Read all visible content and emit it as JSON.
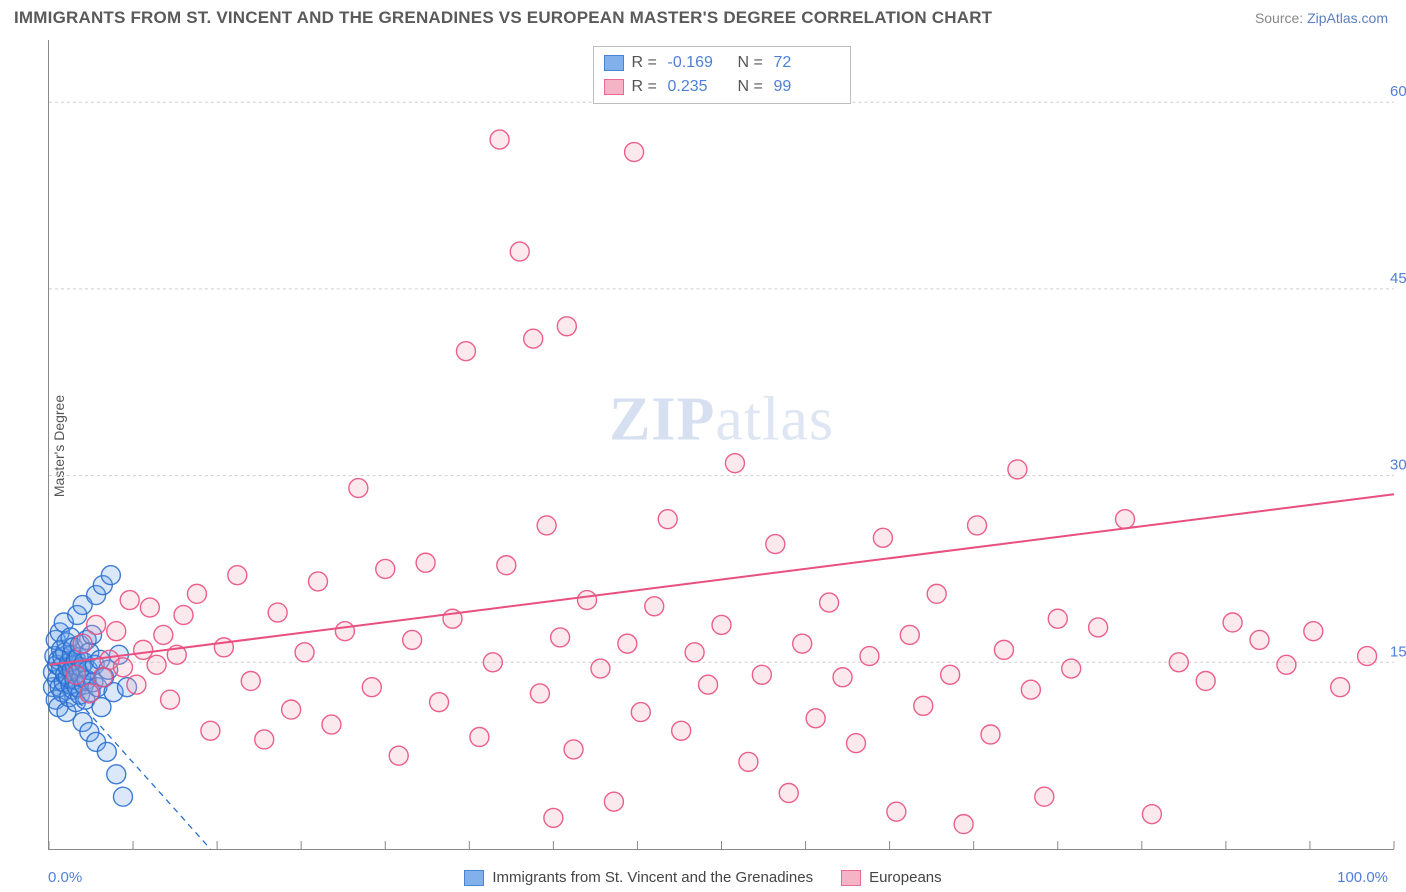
{
  "title": "IMMIGRANTS FROM ST. VINCENT AND THE GRENADINES VS EUROPEAN MASTER'S DEGREE CORRELATION CHART",
  "source_prefix": "Source: ",
  "source_link_text": "ZipAtlas.com",
  "watermark": "ZIPatlas",
  "ylabel": "Master's Degree",
  "chart": {
    "type": "scatter",
    "xlim": [
      0,
      100
    ],
    "ylim": [
      0,
      65
    ],
    "x_ticks_minor_step": 6.25,
    "y_gridlines": [
      15,
      30,
      45,
      60
    ],
    "y_tick_labels": [
      "15.0%",
      "30.0%",
      "45.0%",
      "60.0%"
    ],
    "x_start_label": "0.0%",
    "x_end_label": "100.0%",
    "background_color": "#ffffff",
    "grid_color": "#cfcfcf",
    "marker_radius": 9.5,
    "series": [
      {
        "id": "svg_series",
        "label": "Immigrants from St. Vincent and the Grenadines",
        "color_fill": "#6da3e8",
        "color_stroke": "#2b6fd0",
        "R": "-0.169",
        "N": "72",
        "trend": {
          "x1": 0,
          "y1": 14.5,
          "x2": 12,
          "y2": 0,
          "dashed": true,
          "stroke": "#2b6fd0"
        },
        "points": [
          [
            0.3,
            13.0
          ],
          [
            0.3,
            14.2
          ],
          [
            0.4,
            15.5
          ],
          [
            0.5,
            12.0
          ],
          [
            0.5,
            16.8
          ],
          [
            0.6,
            13.6
          ],
          [
            0.6,
            14.8
          ],
          [
            0.7,
            15.2
          ],
          [
            0.7,
            11.4
          ],
          [
            0.8,
            17.4
          ],
          [
            0.8,
            13.0
          ],
          [
            0.9,
            14.6
          ],
          [
            0.9,
            16.0
          ],
          [
            1.0,
            12.6
          ],
          [
            1.0,
            15.4
          ],
          [
            1.1,
            18.2
          ],
          [
            1.1,
            13.4
          ],
          [
            1.2,
            14.0
          ],
          [
            1.2,
            15.8
          ],
          [
            1.3,
            11.0
          ],
          [
            1.3,
            16.6
          ],
          [
            1.4,
            13.8
          ],
          [
            1.4,
            14.6
          ],
          [
            1.5,
            15.0
          ],
          [
            1.5,
            12.2
          ],
          [
            1.6,
            17.0
          ],
          [
            1.6,
            13.2
          ],
          [
            1.7,
            14.4
          ],
          [
            1.7,
            15.6
          ],
          [
            1.8,
            12.8
          ],
          [
            1.8,
            16.2
          ],
          [
            1.9,
            13.6
          ],
          [
            1.9,
            14.8
          ],
          [
            2.0,
            15.2
          ],
          [
            2.0,
            11.8
          ],
          [
            2.1,
            18.8
          ],
          [
            2.1,
            13.0
          ],
          [
            2.2,
            14.2
          ],
          [
            2.2,
            15.4
          ],
          [
            2.3,
            12.4
          ],
          [
            2.3,
            16.4
          ],
          [
            2.4,
            13.8
          ],
          [
            2.4,
            14.6
          ],
          [
            2.5,
            10.2
          ],
          [
            2.5,
            19.6
          ],
          [
            2.6,
            13.2
          ],
          [
            2.6,
            15.0
          ],
          [
            2.7,
            12.0
          ],
          [
            2.8,
            16.8
          ],
          [
            2.8,
            13.6
          ],
          [
            2.9,
            14.4
          ],
          [
            3.0,
            9.4
          ],
          [
            3.0,
            15.8
          ],
          [
            3.1,
            12.6
          ],
          [
            3.2,
            17.2
          ],
          [
            3.3,
            13.4
          ],
          [
            3.4,
            14.8
          ],
          [
            3.5,
            8.6
          ],
          [
            3.5,
            20.4
          ],
          [
            3.6,
            13.0
          ],
          [
            3.8,
            15.2
          ],
          [
            3.9,
            11.4
          ],
          [
            4.0,
            21.2
          ],
          [
            4.1,
            13.8
          ],
          [
            4.3,
            7.8
          ],
          [
            4.4,
            14.4
          ],
          [
            4.6,
            22.0
          ],
          [
            4.8,
            12.6
          ],
          [
            5.0,
            6.0
          ],
          [
            5.2,
            15.6
          ],
          [
            5.5,
            4.2
          ],
          [
            5.8,
            13.0
          ]
        ]
      },
      {
        "id": "eur_series",
        "label": "Europeans",
        "color_fill": "#f4a8bd",
        "color_stroke": "#e94f7f",
        "R": "0.235",
        "N": "99",
        "trend": {
          "x1": 0,
          "y1": 14.8,
          "x2": 100,
          "y2": 28.5,
          "dashed": false,
          "stroke": "#e94f7f"
        },
        "points": [
          [
            2.0,
            14.0
          ],
          [
            2.5,
            16.5
          ],
          [
            3.0,
            12.5
          ],
          [
            3.5,
            18.0
          ],
          [
            4.0,
            13.8
          ],
          [
            4.5,
            15.2
          ],
          [
            5.0,
            17.5
          ],
          [
            5.5,
            14.6
          ],
          [
            6.0,
            20.0
          ],
          [
            6.5,
            13.2
          ],
          [
            7.0,
            16.0
          ],
          [
            7.5,
            19.4
          ],
          [
            8.0,
            14.8
          ],
          [
            8.5,
            17.2
          ],
          [
            9.0,
            12.0
          ],
          [
            9.5,
            15.6
          ],
          [
            10.0,
            18.8
          ],
          [
            11.0,
            20.5
          ],
          [
            12.0,
            9.5
          ],
          [
            13.0,
            16.2
          ],
          [
            14.0,
            22.0
          ],
          [
            15.0,
            13.5
          ],
          [
            16.0,
            8.8
          ],
          [
            17.0,
            19.0
          ],
          [
            18.0,
            11.2
          ],
          [
            19.0,
            15.8
          ],
          [
            20.0,
            21.5
          ],
          [
            21.0,
            10.0
          ],
          [
            22.0,
            17.5
          ],
          [
            23.0,
            29.0
          ],
          [
            24.0,
            13.0
          ],
          [
            25.0,
            22.5
          ],
          [
            26.0,
            7.5
          ],
          [
            27.0,
            16.8
          ],
          [
            28.0,
            23.0
          ],
          [
            29.0,
            11.8
          ],
          [
            30.0,
            18.5
          ],
          [
            31.0,
            40.0
          ],
          [
            32.0,
            9.0
          ],
          [
            33.0,
            15.0
          ],
          [
            33.5,
            57.0
          ],
          [
            34.0,
            22.8
          ],
          [
            35.0,
            48.0
          ],
          [
            36.0,
            41.0
          ],
          [
            36.5,
            12.5
          ],
          [
            37.0,
            26.0
          ],
          [
            37.5,
            2.5
          ],
          [
            38.0,
            17.0
          ],
          [
            38.5,
            42.0
          ],
          [
            39.0,
            8.0
          ],
          [
            40.0,
            20.0
          ],
          [
            41.0,
            14.5
          ],
          [
            42.0,
            3.8
          ],
          [
            43.0,
            16.5
          ],
          [
            43.5,
            56.0
          ],
          [
            44.0,
            11.0
          ],
          [
            45.0,
            19.5
          ],
          [
            46.0,
            26.5
          ],
          [
            47.0,
            9.5
          ],
          [
            48.0,
            15.8
          ],
          [
            49.0,
            13.2
          ],
          [
            50.0,
            18.0
          ],
          [
            51.0,
            31.0
          ],
          [
            52.0,
            7.0
          ],
          [
            53.0,
            14.0
          ],
          [
            54.0,
            24.5
          ],
          [
            55.0,
            4.5
          ],
          [
            56.0,
            16.5
          ],
          [
            57.0,
            10.5
          ],
          [
            58.0,
            19.8
          ],
          [
            59.0,
            13.8
          ],
          [
            60.0,
            8.5
          ],
          [
            61.0,
            15.5
          ],
          [
            62.0,
            25.0
          ],
          [
            63.0,
            3.0
          ],
          [
            64.0,
            17.2
          ],
          [
            65.0,
            11.5
          ],
          [
            66.0,
            20.5
          ],
          [
            67.0,
            14.0
          ],
          [
            68.0,
            2.0
          ],
          [
            69.0,
            26.0
          ],
          [
            70.0,
            9.2
          ],
          [
            71.0,
            16.0
          ],
          [
            72.0,
            30.5
          ],
          [
            73.0,
            12.8
          ],
          [
            74.0,
            4.2
          ],
          [
            75.0,
            18.5
          ],
          [
            76.0,
            14.5
          ],
          [
            78.0,
            17.8
          ],
          [
            80.0,
            26.5
          ],
          [
            82.0,
            2.8
          ],
          [
            84.0,
            15.0
          ],
          [
            86.0,
            13.5
          ],
          [
            88.0,
            18.2
          ],
          [
            90.0,
            16.8
          ],
          [
            92.0,
            14.8
          ],
          [
            94.0,
            17.5
          ],
          [
            96.0,
            13.0
          ],
          [
            98.0,
            15.5
          ]
        ]
      }
    ]
  },
  "legend_top_labels": {
    "R": "R =",
    "N": "N ="
  }
}
